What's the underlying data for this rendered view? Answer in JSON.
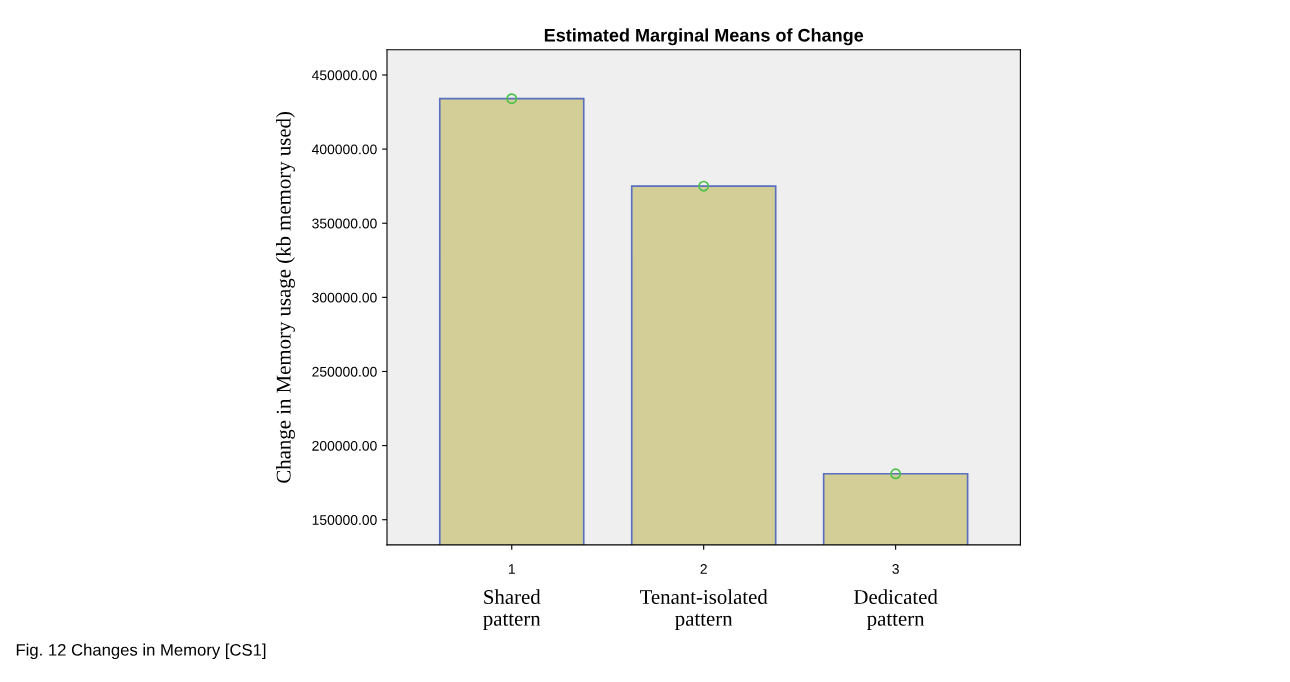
{
  "chart_data": {
    "type": "bar",
    "title": "Estimated Marginal Means of Change",
    "ylabel": "Change in Memory usage (kb memory used)",
    "categories": [
      "1",
      "2",
      "3"
    ],
    "series": [
      {
        "color": "#d3ce97",
        "values": [
          434000,
          375000,
          181000
        ]
      },
      {
        "type": "scatter",
        "color": "#4cc24c",
        "x": [
          "1",
          "2",
          "3"
        ],
        "values": [
          434000,
          375000,
          181000
        ]
      }
    ],
    "ylim": [
      133000,
      467000
    ],
    "yticks": [
      {
        "value": 150000,
        "label": "150000.00"
      },
      {
        "value": 200000,
        "label": "200000.00"
      },
      {
        "value": 250000,
        "label": "250000.00"
      },
      {
        "value": 300000,
        "label": "300000.00"
      },
      {
        "value": 350000,
        "label": "350000.00"
      },
      {
        "value": 400000,
        "label": "400000.00"
      },
      {
        "value": 450000,
        "label": "450000.00"
      }
    ],
    "grid": false,
    "legend": false,
    "marker": "circle",
    "annotations": [
      "Shared\npattern",
      "Tenant-isolated\npattern",
      "Dedicated\npattern",
      "Fig. 12 Changes in Memory [CS1]"
    ]
  }
}
